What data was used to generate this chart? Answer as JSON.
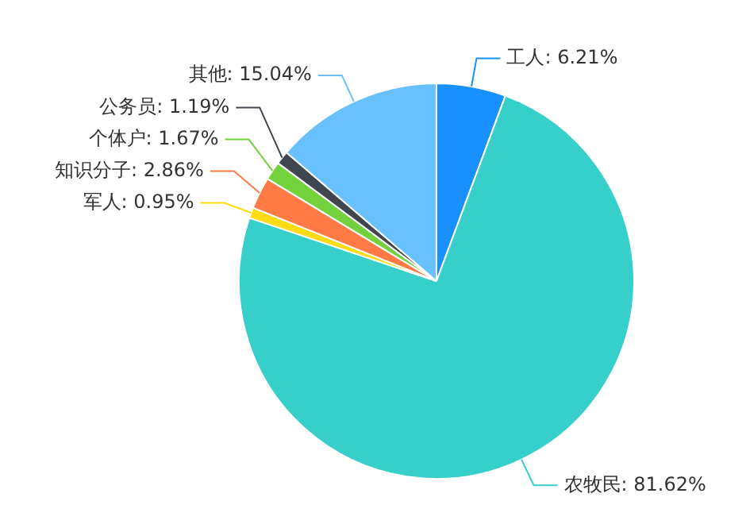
{
  "chart_data": {
    "type": "pie",
    "categories": [
      "工人",
      "农牧民",
      "军人",
      "知识分子",
      "个体户",
      "公务员",
      "其他"
    ],
    "values": [
      6.21,
      81.62,
      0.95,
      2.86,
      1.67,
      1.19,
      15.04
    ],
    "value_labels": [
      "6.21%",
      "81.62%",
      "0.95%",
      "2.86%",
      "1.67%",
      "1.19%",
      "15.04%"
    ],
    "colors": [
      "#1890ff",
      "#36cfc9",
      "#fadb14",
      "#ff7a45",
      "#73d13d",
      "#3f4650",
      "#69c0ff"
    ],
    "legend": false
  }
}
